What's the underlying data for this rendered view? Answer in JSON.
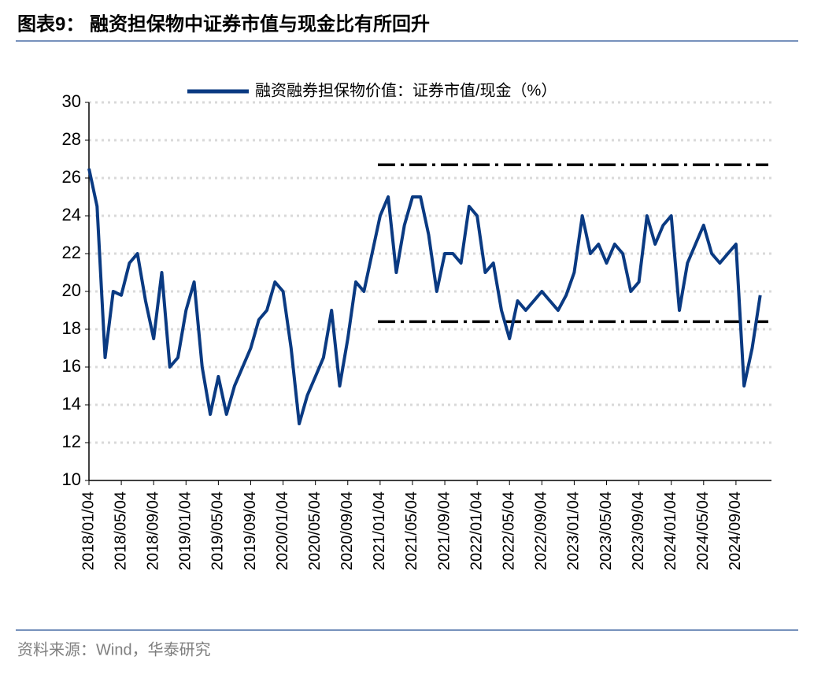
{
  "chart_data": {
    "type": "line",
    "title": "图表9：  融资担保物中证券市值与现金比有所回升",
    "source": "资料来源：Wind，华泰研究",
    "categories": [
      "2018/01/04",
      null,
      null,
      null,
      "2018/05/04",
      null,
      null,
      null,
      "2018/09/04",
      null,
      null,
      null,
      "2019/01/04",
      null,
      null,
      null,
      "2019/05/04",
      null,
      null,
      null,
      "2019/09/04",
      null,
      null,
      null,
      "2020/01/04",
      null,
      null,
      null,
      "2020/05/04",
      null,
      null,
      null,
      "2020/09/04",
      null,
      null,
      null,
      "2021/01/04",
      null,
      null,
      null,
      "2021/05/04",
      null,
      null,
      null,
      "2021/09/04",
      null,
      null,
      null,
      "2022/01/04",
      null,
      null,
      null,
      "2022/05/04",
      null,
      null,
      null,
      "2022/09/04",
      null,
      null,
      null,
      "2023/01/04",
      null,
      null,
      null,
      "2023/05/04",
      null,
      null,
      null,
      "2023/09/04",
      null,
      null,
      null,
      "2024/01/04",
      null,
      null,
      null,
      "2024/05/04",
      null,
      null,
      null,
      "2024/09/04",
      null,
      null,
      null
    ],
    "series": [
      {
        "name": "融资融券担保物价值：证券市值/现金（%）",
        "color": "#0a3a82",
        "values": [
          26.5,
          24.5,
          16.5,
          20,
          19.8,
          21.5,
          22,
          19.5,
          17.5,
          21,
          16,
          16.5,
          19,
          20.5,
          16,
          13.5,
          15.5,
          13.5,
          15,
          16,
          17,
          18.5,
          19,
          20.5,
          20,
          17,
          13,
          14.5,
          15.5,
          16.5,
          19,
          15,
          17.5,
          20.5,
          20,
          22,
          24,
          25,
          21,
          23.5,
          25,
          25,
          23,
          20,
          22,
          22,
          21.5,
          24.5,
          24,
          21,
          21.5,
          19,
          17.5,
          19.5,
          19,
          19.5,
          20,
          19.5,
          19,
          19.8,
          21,
          24,
          22,
          22.5,
          21.5,
          22.5,
          22,
          20,
          20.5,
          24,
          22.5,
          23.5,
          24,
          19,
          21.5,
          22.5,
          23.5,
          22,
          21.5,
          22,
          22.5,
          15,
          17,
          19.8
        ]
      }
    ],
    "reference_lines": [
      {
        "value": 26.7
      },
      {
        "value": 18.4
      }
    ],
    "ylim": [
      10,
      30
    ],
    "yticks": [
      10,
      12,
      14,
      16,
      18,
      20,
      22,
      24,
      26,
      28,
      30
    ],
    "grid": true
  }
}
